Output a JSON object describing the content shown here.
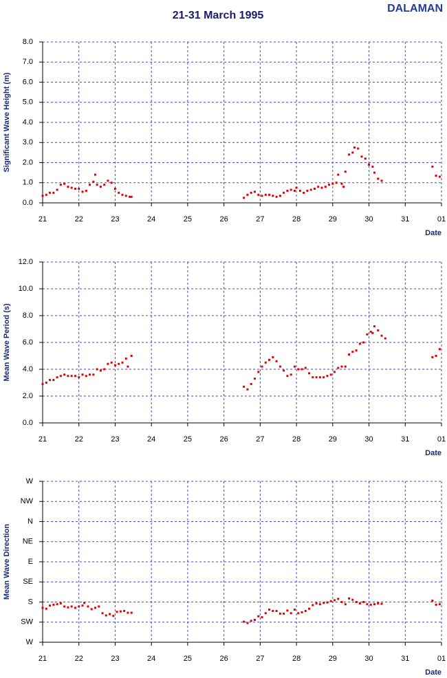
{
  "title": "21-31 March 1995",
  "station": "DALAMAN",
  "chart_data": [
    {
      "type": "scatter",
      "y_label": "Significant Wave Height (m)",
      "x_label": "Date",
      "color": "#e00000",
      "grid": true,
      "xlim": [
        21,
        32
      ],
      "xticks": [
        21,
        22,
        23,
        24,
        25,
        26,
        27,
        28,
        29,
        30,
        31,
        {
          "value": 32,
          "label": "01"
        }
      ],
      "ylim": [
        0,
        8
      ],
      "yticks": [
        {
          "value": 0,
          "label": "0.0"
        },
        {
          "value": 1,
          "label": "1.0"
        },
        {
          "value": 2,
          "label": "2.0"
        },
        {
          "value": 3,
          "label": "3.0"
        },
        {
          "value": 4,
          "label": "4.0"
        },
        {
          "value": 5,
          "label": "5.0"
        },
        {
          "value": 6,
          "label": "6.0"
        },
        {
          "value": 7,
          "label": "7.0"
        },
        {
          "value": 8,
          "label": "8.0"
        }
      ],
      "x": [
        21.0,
        21.1,
        21.2,
        21.3,
        21.4,
        21.5,
        21.6,
        21.7,
        21.8,
        21.9,
        22.0,
        22.1,
        22.2,
        22.3,
        22.4,
        22.45,
        22.5,
        22.6,
        22.7,
        22.8,
        22.9,
        23.0,
        23.1,
        23.2,
        23.3,
        23.4,
        23.45,
        26.55,
        26.65,
        26.75,
        26.85,
        26.95,
        27.05,
        27.15,
        27.25,
        27.35,
        27.45,
        27.55,
        27.65,
        27.75,
        27.85,
        27.95,
        28.0,
        28.1,
        28.2,
        28.3,
        28.4,
        28.5,
        28.6,
        28.7,
        28.8,
        28.9,
        29.0,
        29.1,
        29.15,
        29.25,
        29.3,
        29.35,
        29.45,
        29.55,
        29.6,
        29.7,
        29.8,
        29.9,
        30.0,
        30.1,
        30.15,
        30.25,
        30.35,
        31.75,
        31.85,
        31.95
      ],
      "values": [
        0.35,
        0.4,
        0.5,
        0.5,
        0.65,
        0.9,
        0.95,
        0.8,
        0.75,
        0.7,
        0.7,
        0.55,
        0.6,
        0.9,
        1.05,
        1.4,
        0.9,
        0.8,
        0.9,
        1.1,
        1.0,
        0.7,
        0.5,
        0.4,
        0.35,
        0.3,
        0.3,
        0.25,
        0.4,
        0.5,
        0.55,
        0.4,
        0.35,
        0.4,
        0.4,
        0.35,
        0.3,
        0.35,
        0.5,
        0.6,
        0.65,
        0.6,
        0.75,
        0.6,
        0.5,
        0.6,
        0.65,
        0.7,
        0.8,
        0.75,
        0.8,
        0.9,
        0.95,
        1.0,
        1.4,
        0.95,
        0.8,
        1.55,
        2.4,
        2.5,
        2.75,
        2.7,
        2.3,
        2.2,
        1.9,
        1.8,
        1.5,
        1.2,
        1.1,
        1.8,
        1.35,
        1.3
      ]
    },
    {
      "type": "scatter",
      "y_label": "Mean Wave Period (s)",
      "x_label": "Date",
      "color": "#e00000",
      "grid": true,
      "xlim": [
        21,
        32
      ],
      "xticks": [
        21,
        22,
        23,
        24,
        25,
        26,
        27,
        28,
        29,
        30,
        31,
        {
          "value": 32,
          "label": "01"
        }
      ],
      "ylim": [
        0,
        12
      ],
      "yticks": [
        {
          "value": 0,
          "label": "0.0"
        },
        {
          "value": 2,
          "label": "2.0"
        },
        {
          "value": 4,
          "label": "4.0"
        },
        {
          "value": 6,
          "label": "6.0"
        },
        {
          "value": 8,
          "label": "8.0"
        },
        {
          "value": 10,
          "label": "10.0"
        },
        {
          "value": 12,
          "label": "12.0"
        }
      ],
      "x": [
        21.0,
        21.1,
        21.2,
        21.3,
        21.4,
        21.5,
        21.6,
        21.7,
        21.8,
        21.9,
        22.0,
        22.1,
        22.2,
        22.3,
        22.4,
        22.5,
        22.6,
        22.7,
        22.8,
        22.9,
        23.0,
        23.1,
        23.2,
        23.3,
        23.35,
        23.45,
        26.55,
        26.65,
        26.75,
        26.85,
        26.95,
        27.05,
        27.15,
        27.25,
        27.35,
        27.45,
        27.55,
        27.65,
        27.75,
        27.85,
        27.95,
        28.05,
        28.15,
        28.25,
        28.35,
        28.45,
        28.55,
        28.65,
        28.75,
        28.85,
        28.95,
        29.05,
        29.15,
        29.25,
        29.35,
        29.45,
        29.55,
        29.65,
        29.75,
        29.85,
        29.95,
        30.05,
        30.1,
        30.15,
        30.25,
        30.35,
        30.45,
        31.75,
        31.85,
        31.95
      ],
      "values": [
        2.9,
        3.0,
        3.2,
        3.2,
        3.4,
        3.5,
        3.6,
        3.5,
        3.5,
        3.5,
        3.4,
        3.6,
        3.5,
        3.6,
        3.6,
        4.0,
        3.9,
        4.0,
        4.4,
        4.5,
        4.3,
        4.4,
        4.5,
        4.8,
        4.2,
        5.0,
        2.7,
        2.5,
        2.9,
        3.3,
        3.8,
        4.2,
        4.5,
        4.7,
        4.9,
        4.6,
        4.2,
        3.9,
        3.5,
        3.6,
        4.2,
        4.0,
        4.0,
        4.1,
        3.7,
        3.4,
        3.4,
        3.4,
        3.4,
        3.5,
        3.6,
        3.8,
        4.1,
        4.2,
        4.2,
        5.1,
        5.3,
        5.4,
        5.9,
        6.0,
        6.6,
        6.8,
        6.7,
        7.2,
        6.9,
        6.5,
        6.3,
        4.9,
        5.0,
        5.5
      ]
    },
    {
      "type": "scatter",
      "y_label": "Mean Wave Direction",
      "x_label": "Date",
      "color": "#e00000",
      "grid": true,
      "xlim": [
        21,
        32
      ],
      "xticks": [
        21,
        22,
        23,
        24,
        25,
        26,
        27,
        28,
        29,
        30,
        31,
        {
          "value": 32,
          "label": "01"
        }
      ],
      "ylim": [
        270,
        -90
      ],
      "yticks": [
        {
          "value": 270,
          "label": "W"
        },
        {
          "value": 225,
          "label": "SW"
        },
        {
          "value": 180,
          "label": "S"
        },
        {
          "value": 135,
          "label": "SE"
        },
        {
          "value": 90,
          "label": "E"
        },
        {
          "value": 45,
          "label": "NE"
        },
        {
          "value": 0,
          "label": "N"
        },
        {
          "value": -45,
          "label": "NW"
        },
        {
          "value": -90,
          "label": "W"
        }
      ],
      "x": [
        21.0,
        21.1,
        21.2,
        21.3,
        21.4,
        21.5,
        21.6,
        21.7,
        21.8,
        21.9,
        22.0,
        22.1,
        22.15,
        22.25,
        22.35,
        22.45,
        22.55,
        22.65,
        22.75,
        22.85,
        22.95,
        23.05,
        23.15,
        23.25,
        23.35,
        23.45,
        26.55,
        26.65,
        26.75,
        26.85,
        26.95,
        27.05,
        27.15,
        27.25,
        27.35,
        27.45,
        27.55,
        27.65,
        27.75,
        27.85,
        27.95,
        28.05,
        28.15,
        28.25,
        28.35,
        28.45,
        28.55,
        28.65,
        28.75,
        28.85,
        28.95,
        29.05,
        29.15,
        29.25,
        29.35,
        29.45,
        29.55,
        29.65,
        29.75,
        29.85,
        29.95,
        30.05,
        30.15,
        30.25,
        30.35,
        31.75,
        31.85,
        31.95
      ],
      "values": [
        193,
        195,
        188,
        186,
        185,
        183,
        190,
        192,
        190,
        193,
        190,
        188,
        182,
        190,
        196,
        193,
        190,
        205,
        210,
        207,
        211,
        202,
        201,
        200,
        204,
        204,
        224,
        227,
        222,
        220,
        212,
        214,
        205,
        197,
        200,
        200,
        206,
        206,
        199,
        205,
        197,
        205,
        203,
        200,
        195,
        187,
        183,
        185,
        182,
        181,
        178,
        176,
        173,
        180,
        185,
        172,
        175,
        180,
        183,
        180,
        185,
        186,
        185,
        183,
        184,
        177,
        186,
        185
      ]
    }
  ]
}
